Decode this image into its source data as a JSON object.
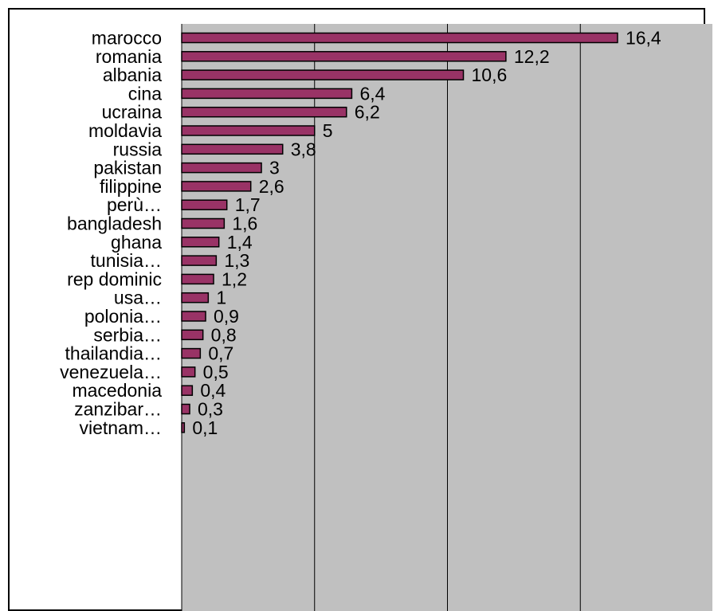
{
  "chart_data": {
    "type": "bar",
    "orientation": "horizontal",
    "categories": [
      "marocco",
      "romania",
      "albania",
      "cina",
      "ucraina",
      "moldavia",
      "russia",
      "pakistan",
      "filippine",
      "perù…",
      "bangladesh",
      "ghana",
      "tunisia…",
      "rep dominic",
      "usa…",
      "polonia…",
      "serbia…",
      "thailandia…",
      "venezuela…",
      "macedonia",
      "zanzibar…",
      "vietnam…"
    ],
    "values": [
      16.4,
      12.2,
      10.6,
      6.4,
      6.2,
      5,
      3.8,
      3,
      2.6,
      1.7,
      1.6,
      1.4,
      1.3,
      1.2,
      1,
      0.9,
      0.8,
      0.7,
      0.5,
      0.4,
      0.3,
      0.1
    ],
    "value_labels": [
      "16,4",
      "12,2",
      "10,6",
      "6,4",
      "6,2",
      "5",
      "3,8",
      "3",
      "2,6",
      "1,7",
      "1,6",
      "1,4",
      "1,3",
      "1,2",
      "1",
      "0,9",
      "0,8",
      "0,7",
      "0,5",
      "0,4",
      "0,3",
      "0,1"
    ],
    "xlim": [
      0,
      20
    ],
    "grid": true,
    "legend": "none",
    "colors": {
      "bar_fill": "#993366",
      "bar_stroke": "#000000",
      "plot_background": "#c0c0c0",
      "gridline": "#000000",
      "page_background": "#ffffff"
    }
  }
}
